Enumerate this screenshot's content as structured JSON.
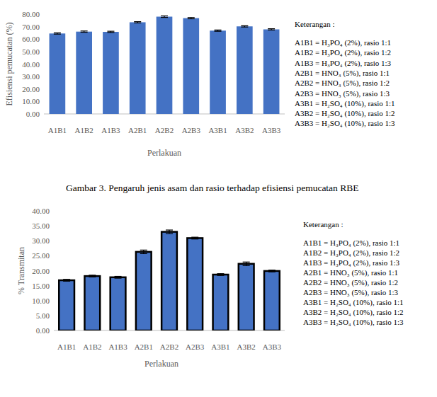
{
  "chart_data": [
    {
      "type": "bar",
      "caption": "Gambar 3. Pengaruh jenis asam dan rasio terhadap efisiensi pemucatan RBE",
      "y_label": "Efisiensi pemucatan  (%)",
      "x_label": "Perlakuan",
      "categories": [
        "A1B1",
        "A1B2",
        "A1B3",
        "A2B1",
        "A2B2",
        "A2B3",
        "A3B1",
        "A3B2",
        "A3B3"
      ],
      "values": [
        64.5,
        66.0,
        65.8,
        73.5,
        78.0,
        76.8,
        66.8,
        70.2,
        67.8
      ],
      "errors": [
        0.5,
        0.5,
        0.5,
        0.5,
        0.6,
        0.5,
        0.5,
        0.5,
        0.5
      ],
      "color": "#4472c4",
      "ylim": [
        0,
        80
      ],
      "yticks": [
        {
          "value": 0,
          "label": "0.00"
        },
        {
          "value": 10,
          "label": "10.00"
        },
        {
          "value": 20,
          "label": "20.00"
        },
        {
          "value": 30,
          "label": "30.00"
        },
        {
          "value": 40,
          "label": "40.00"
        },
        {
          "value": 50,
          "label": "50.00"
        },
        {
          "value": 60,
          "label": "60.00"
        },
        {
          "value": 70,
          "label": "70.00"
        },
        {
          "value": 80,
          "label": "80.00"
        }
      ],
      "annotation_title": "Keterangan :",
      "annotations": [
        "A1B1 = H₃PO₄ (2%), rasio 1:1",
        "A1B2 = H₃PO₄ (2%), rasio 1:2",
        "A1B3 = H₃PO₄ (2%), rasio 1:3",
        "A2B1 = HNO₃ (5%), rasio 1:1",
        "A2B2 = HNO₃ (5%), rasio 1:2",
        "A2B3 = HNO₃ (5%), rasio 1:3",
        "A3B1 = H₂SO₄ (10%), rasio 1:1",
        "A3B2 = H₂SO₄ (10%), rasio 1:2",
        "A3B3 = H₂SO₄ (10%), rasio 1:3"
      ]
    },
    {
      "type": "bar",
      "y_label": "% Transmitan",
      "x_label": "Perlakuan",
      "categories": [
        "A1B1",
        "A1B2",
        "A1B3",
        "A2B1",
        "A2B2",
        "A2B3",
        "A3B1",
        "A3B2",
        "A3B3"
      ],
      "values": [
        16.8,
        18.2,
        17.8,
        26.3,
        33.0,
        30.9,
        18.7,
        22.3,
        19.9
      ],
      "errors": [
        0.3,
        0.3,
        0.3,
        0.6,
        0.6,
        0.3,
        0.3,
        0.6,
        0.3
      ],
      "color": "#4472c4",
      "ylim": [
        0,
        40
      ],
      "yticks": [
        {
          "value": 0,
          "label": "0.00"
        },
        {
          "value": 5,
          "label": "5.00"
        },
        {
          "value": 10,
          "label": "10.00"
        },
        {
          "value": 15,
          "label": "15.00"
        },
        {
          "value": 20,
          "label": "20.00"
        },
        {
          "value": 25,
          "label": "25.00"
        },
        {
          "value": 30,
          "label": "30.00"
        },
        {
          "value": 35,
          "label": "35.00"
        },
        {
          "value": 40,
          "label": "40.00"
        }
      ],
      "annotation_title": "Keterangan :",
      "annotations": [
        "A1B1 = H₃PO₄ (2%), rasio 1:1",
        "A1B2 = H₃PO₄ (2%), rasio 1:2",
        "A1B3 = H₃PO₄ (2%), rasio 1:3",
        "A2B1 = HNO₃ (5%), rasio 1:1",
        "A2B2 = HNO₃ (5%), rasio 1:2",
        "A2B3 = HNO₃ (5%), rasio 1:3",
        "A3B1 = H₂SO₄ (10%), rasio 1:1",
        "A3B2 = H₂SO₄ (10%), rasio 1:2",
        "A3B3 = H₂SO₄ (10%), rasio 1:3"
      ]
    }
  ]
}
